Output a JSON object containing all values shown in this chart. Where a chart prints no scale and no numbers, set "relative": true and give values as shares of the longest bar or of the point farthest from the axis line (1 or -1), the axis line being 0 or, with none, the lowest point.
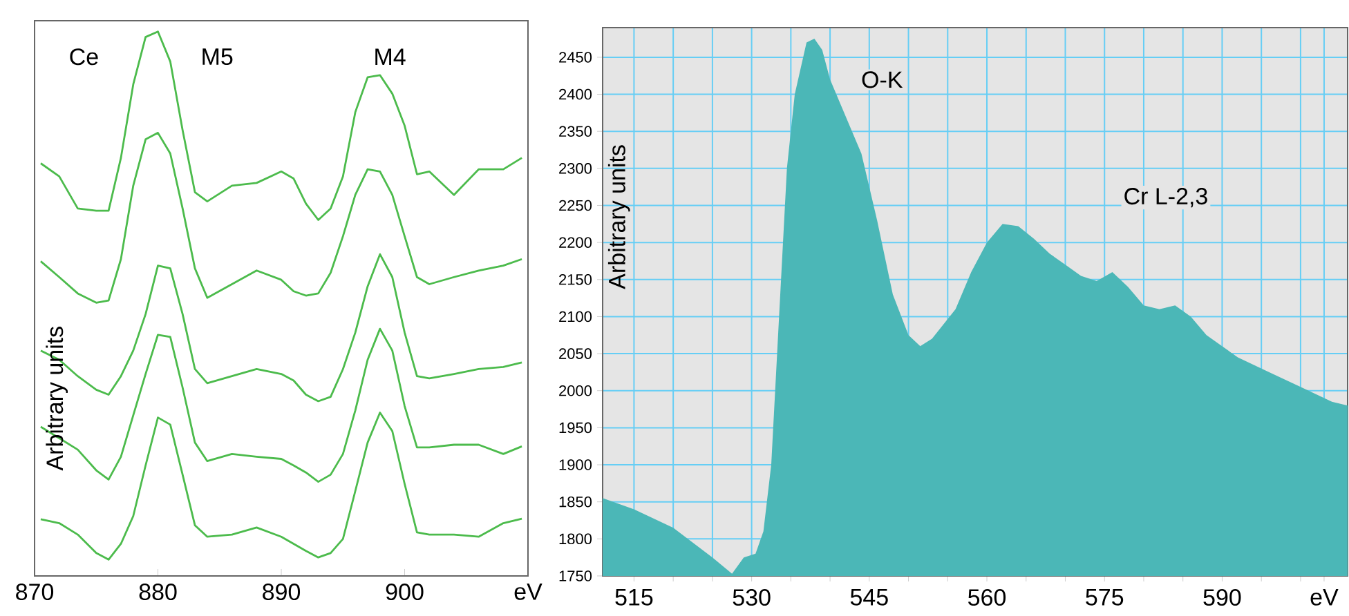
{
  "chart_data": [
    {
      "type": "line",
      "relative": true,
      "ylabel": "Arbitrary units",
      "xlim": [
        870,
        910
      ],
      "xticks": [
        870,
        880,
        890,
        900,
        {
          "value": 910,
          "label": "eV"
        }
      ],
      "x": [
        870.5,
        872,
        873.5,
        875,
        876,
        877,
        878,
        879,
        880,
        881,
        882,
        883,
        884,
        886,
        888,
        890,
        891,
        892,
        893,
        894,
        895,
        896,
        897,
        898,
        899,
        900,
        901,
        902,
        904,
        906,
        908,
        909.5
      ],
      "series": [
        {
          "color": "#4cbb4c",
          "values": [
            0.758,
            0.734,
            0.675,
            0.671,
            0.671,
            0.768,
            0.903,
            0.99,
            1.0,
            0.945,
            0.819,
            0.705,
            0.688,
            0.717,
            0.722,
            0.743,
            0.73,
            0.684,
            0.654,
            0.675,
            0.734,
            0.852,
            0.916,
            0.92,
            0.886,
            0.827,
            0.738,
            0.743,
            0.7,
            0.747,
            0.747,
            0.768
          ]
        },
        {
          "color": "#4cbb4c",
          "values": [
            0.578,
            0.549,
            0.519,
            0.502,
            0.506,
            0.582,
            0.717,
            0.802,
            0.814,
            0.776,
            0.675,
            0.565,
            0.511,
            0.536,
            0.561,
            0.544,
            0.523,
            0.515,
            0.519,
            0.557,
            0.624,
            0.7,
            0.747,
            0.743,
            0.7,
            0.624,
            0.549,
            0.536,
            0.549,
            0.561,
            0.57,
            0.582
          ]
        },
        {
          "color": "#4cbb4c",
          "values": [
            0.414,
            0.397,
            0.367,
            0.342,
            0.333,
            0.367,
            0.414,
            0.481,
            0.57,
            0.565,
            0.481,
            0.38,
            0.354,
            0.367,
            0.38,
            0.371,
            0.359,
            0.333,
            0.321,
            0.329,
            0.38,
            0.447,
            0.532,
            0.591,
            0.549,
            0.447,
            0.367,
            0.363,
            0.371,
            0.38,
            0.384,
            0.392
          ]
        },
        {
          "color": "#4cbb4c",
          "values": [
            0.274,
            0.253,
            0.232,
            0.194,
            0.177,
            0.219,
            0.295,
            0.371,
            0.443,
            0.439,
            0.346,
            0.245,
            0.211,
            0.224,
            0.219,
            0.215,
            0.203,
            0.19,
            0.173,
            0.186,
            0.224,
            0.304,
            0.397,
            0.454,
            0.414,
            0.312,
            0.236,
            0.236,
            0.241,
            0.241,
            0.224,
            0.238
          ]
        },
        {
          "color": "#4cbb4c",
          "values": [
            0.104,
            0.097,
            0.076,
            0.042,
            0.03,
            0.059,
            0.11,
            0.203,
            0.291,
            0.278,
            0.186,
            0.093,
            0.072,
            0.076,
            0.089,
            0.072,
            0.059,
            0.046,
            0.034,
            0.042,
            0.068,
            0.156,
            0.245,
            0.3,
            0.266,
            0.169,
            0.08,
            0.076,
            0.076,
            0.072,
            0.097,
            0.105
          ]
        }
      ],
      "annotations": [
        "Ce",
        "M5",
        "M4"
      ]
    },
    {
      "type": "area",
      "ylabel": "Arbitrary units",
      "color": "#4bb7b7",
      "grid": true,
      "xlim": [
        511,
        606
      ],
      "ylim": [
        1750,
        2490
      ],
      "xticks": [
        515,
        {
          "value": 520,
          "label": null
        },
        {
          "value": 525,
          "label": null
        },
        530,
        {
          "value": 535,
          "label": null
        },
        {
          "value": 540,
          "label": null
        },
        545,
        {
          "value": 550,
          "label": null
        },
        {
          "value": 555,
          "label": null
        },
        560,
        {
          "value": 565,
          "label": null
        },
        {
          "value": 570,
          "label": null
        },
        575,
        {
          "value": 580,
          "label": null
        },
        {
          "value": 585,
          "label": null
        },
        590,
        {
          "value": 595,
          "label": null
        },
        {
          "value": 600,
          "label": null
        },
        {
          "value": 603,
          "label": "eV"
        }
      ],
      "yticks": [
        1750,
        1800,
        1850,
        1900,
        1950,
        2000,
        2050,
        2100,
        2150,
        2200,
        2250,
        2300,
        2350,
        2400,
        2450
      ],
      "x": [
        511,
        515,
        520,
        525,
        527.5,
        529,
        530.5,
        531.5,
        532.5,
        533.5,
        534.5,
        535.5,
        537,
        538,
        539,
        540,
        542,
        544,
        546,
        548,
        550,
        551.5,
        553,
        556,
        558,
        560,
        562,
        564,
        566,
        568,
        570,
        572,
        574,
        576,
        578,
        580,
        582,
        584,
        586,
        588,
        592,
        596,
        600,
        604,
        606
      ],
      "values": [
        1855,
        1840,
        1815,
        1775,
        1753,
        1775,
        1780,
        1810,
        1900,
        2100,
        2300,
        2400,
        2470,
        2475,
        2460,
        2420,
        2370,
        2320,
        2230,
        2130,
        2075,
        2060,
        2070,
        2110,
        2160,
        2200,
        2225,
        2222,
        2205,
        2185,
        2170,
        2155,
        2148,
        2160,
        2140,
        2115,
        2110,
        2115,
        2100,
        2075,
        2045,
        2025,
        2005,
        1985,
        1980
      ],
      "annotations": [
        "O-K",
        "Cr L-2,3"
      ]
    }
  ]
}
